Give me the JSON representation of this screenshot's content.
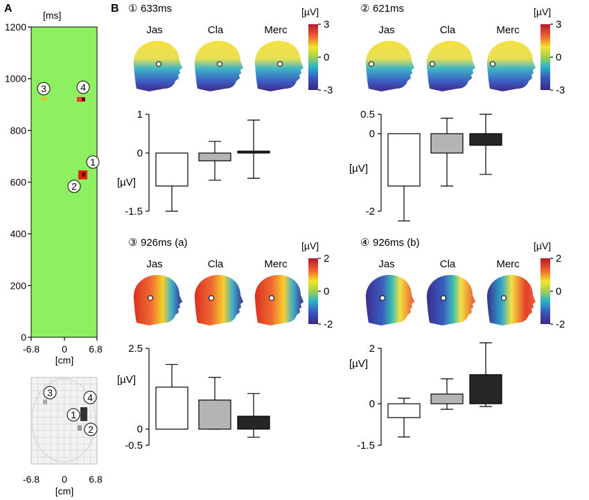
{
  "panel_labels": {
    "a": "A",
    "b": "B"
  },
  "panelA": {
    "y_unit": "[ms]",
    "x_unit": "[cm]",
    "y_ticks": [
      "0",
      "200",
      "400",
      "600",
      "800",
      "1000",
      "1200"
    ],
    "x_ticks": [
      "-6.8",
      "0",
      "6.8"
    ],
    "background_color": "#8cf060",
    "markers": [
      "1",
      "2",
      "3",
      "4"
    ],
    "sensor_x_ticks": [
      "-6.8",
      "0",
      "6.8"
    ],
    "sensor_x_unit": "[cm]"
  },
  "chart_data": [
    {
      "type": "bar",
      "id": "c1",
      "title": "① 633ms",
      "title_num": "①",
      "title_text": "633ms",
      "ylabel": "[µV]",
      "categories": [
        "Jas",
        "Cla",
        "Merc"
      ],
      "values": [
        -0.85,
        -0.2,
        0.05
      ],
      "err_low": [
        -1.5,
        -0.7,
        -0.65
      ],
      "err_high": [
        -0.2,
        0.3,
        0.85
      ],
      "ylim": [
        -1.5,
        1
      ],
      "yticks": [
        "1",
        "0",
        "-1.5"
      ],
      "colorbar": {
        "unit": "[µV]",
        "ticks": [
          "3",
          "0",
          "-3"
        ]
      }
    },
    {
      "type": "bar",
      "id": "c2",
      "title": "② 621ms",
      "title_num": "②",
      "title_text": "621ms",
      "ylabel": "[µV]",
      "categories": [
        "Jas",
        "Cla",
        "Merc"
      ],
      "values": [
        -1.35,
        -0.5,
        -0.3
      ],
      "err_low": [
        -2.25,
        -1.35,
        -1.05
      ],
      "err_high": [
        -0.4,
        0.4,
        0.5
      ],
      "ylim": [
        -2,
        0.5
      ],
      "yticks": [
        "0.5",
        "0",
        "-2"
      ],
      "colorbar": {
        "unit": "[µV]",
        "ticks": [
          "3",
          "0",
          "-3"
        ]
      }
    },
    {
      "type": "bar",
      "id": "c3",
      "title": "③ 926ms (a)",
      "title_num": "③",
      "title_text": "926ms (a)",
      "ylabel": "[µV]",
      "categories": [
        "Jas",
        "Cla",
        "Merc"
      ],
      "values": [
        1.3,
        0.9,
        0.4
      ],
      "err_low": [
        0.6,
        0.0,
        -0.25
      ],
      "err_high": [
        2.0,
        1.6,
        1.1
      ],
      "ylim": [
        -0.5,
        2.5
      ],
      "yticks": [
        "2.5",
        "0",
        "-0.5"
      ],
      "colorbar": {
        "unit": "[µV]",
        "ticks": [
          "2",
          "0",
          "-2"
        ]
      }
    },
    {
      "type": "bar",
      "id": "c4",
      "title": "④ 926ms (b)",
      "title_num": "④",
      "title_text": "926ms (b)",
      "ylabel": "[µV]",
      "categories": [
        "Jas",
        "Cla",
        "Merc"
      ],
      "values": [
        -0.5,
        0.35,
        1.05
      ],
      "err_low": [
        -1.2,
        -0.2,
        -0.1
      ],
      "err_high": [
        0.2,
        0.9,
        2.2
      ],
      "ylim": [
        -1.5,
        2
      ],
      "yticks": [
        "2",
        "0",
        "-1.5"
      ],
      "colorbar": {
        "unit": "[µV]",
        "ticks": [
          "2",
          "0",
          "-2"
        ]
      }
    }
  ],
  "bar_colors": [
    "#ffffff",
    "#b4b4b4",
    "#262626"
  ]
}
